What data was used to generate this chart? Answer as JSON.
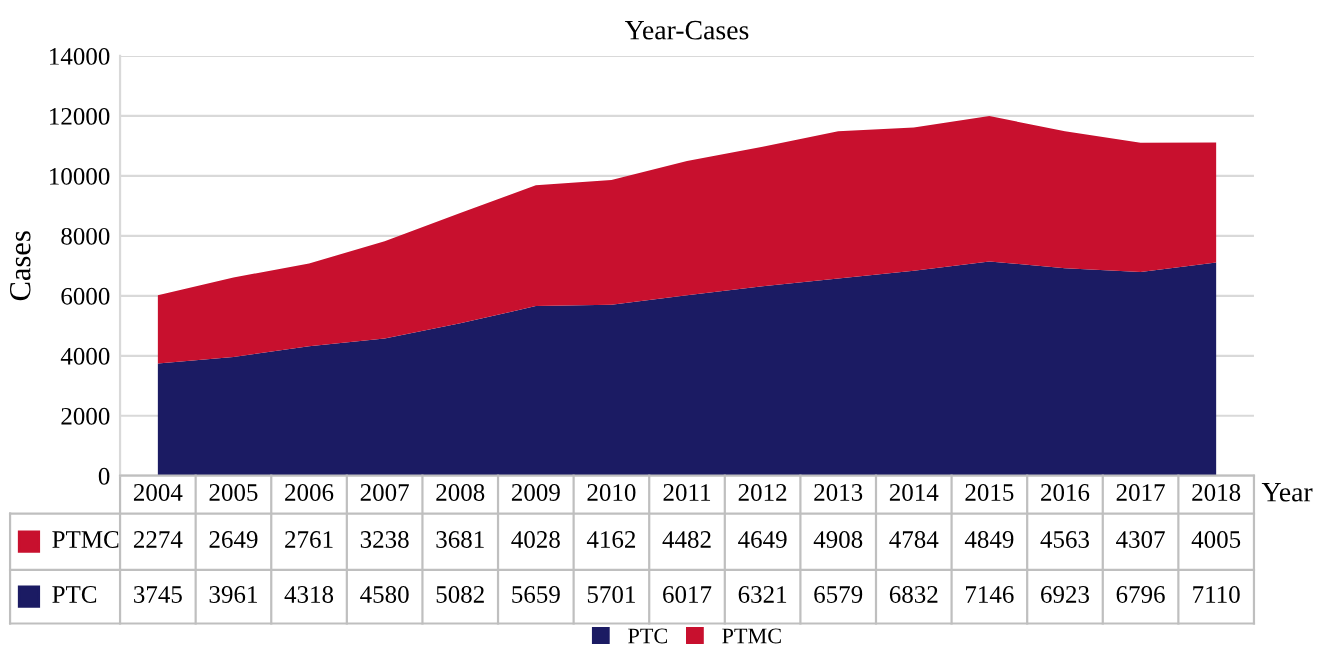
{
  "chart_data": {
    "type": "area",
    "title": "Year-Cases",
    "xlabel": "Year",
    "ylabel": "Cases",
    "stacked": true,
    "data_labels": true,
    "grid": "y",
    "legend": "bottom",
    "categories": [
      "2004",
      "2005",
      "2006",
      "2007",
      "2008",
      "2009",
      "2010",
      "2011",
      "2012",
      "2013",
      "2014",
      "2015",
      "2016",
      "2017",
      "2018"
    ],
    "ylim": [
      0,
      14000
    ],
    "yticks": [
      0,
      2000,
      4000,
      6000,
      8000,
      10000,
      12000,
      14000
    ],
    "series": [
      {
        "name": "PTC",
        "color": "#1b1b63",
        "values": [
          3745,
          3961,
          4318,
          4580,
          5082,
          5659,
          5701,
          6017,
          6321,
          6579,
          6832,
          7146,
          6923,
          6796,
          7110
        ]
      },
      {
        "name": "PTMC",
        "color": "#c8102e",
        "values": [
          2274,
          2649,
          2761,
          3238,
          3681,
          4028,
          4162,
          4482,
          4649,
          4908,
          4784,
          4849,
          4563,
          4307,
          4005
        ]
      }
    ]
  }
}
